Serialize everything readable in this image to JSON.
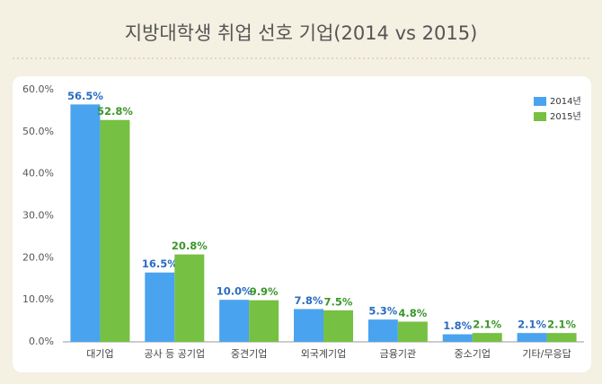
{
  "chart_data": {
    "type": "bar",
    "title": "지방대학생 취업 선호 기업(2014 vs 2015)",
    "categories": [
      "대기업",
      "공사 등 공기업",
      "중견기업",
      "외국계기업",
      "금융기관",
      "중소기업",
      "기타/무응답"
    ],
    "series": [
      {
        "name": "2014년",
        "color": "#4aa3ef",
        "label_color": "#2a6cc2",
        "values": [
          56.5,
          16.5,
          10.0,
          7.8,
          5.3,
          1.8,
          2.1
        ],
        "value_labels": [
          "56.5%",
          "16.5%",
          "10.0%",
          "7.8%",
          "5.3%",
          "1.8%",
          "2.1%"
        ]
      },
      {
        "name": "2015년",
        "color": "#76c043",
        "label_color": "#3a962a",
        "values": [
          52.8,
          20.8,
          9.9,
          7.5,
          4.8,
          2.1,
          2.1
        ],
        "value_labels": [
          "52.8%",
          "20.8%",
          "9.9%",
          "7.5%",
          "4.8%",
          "2.1%",
          "2.1%"
        ]
      }
    ],
    "ylim": [
      0,
      60
    ],
    "yticks": [
      {
        "value": 0,
        "label": "0.0%"
      },
      {
        "value": 10,
        "label": "10.0%"
      },
      {
        "value": 20,
        "label": "20.0%"
      },
      {
        "value": 30,
        "label": "30.0%"
      },
      {
        "value": 40,
        "label": "40.0%"
      },
      {
        "value": 50,
        "label": "50.0%"
      },
      {
        "value": 60,
        "label": "60.0%"
      }
    ],
    "grid": false,
    "legend": "top-right"
  }
}
